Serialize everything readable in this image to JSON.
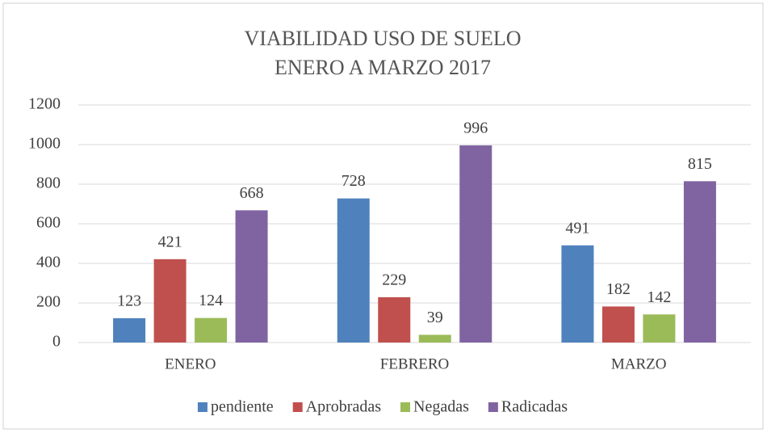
{
  "chart_data": {
    "type": "bar",
    "title": [
      "VIABILIDAD USO DE SUELO",
      "ENERO A MARZO 2017"
    ],
    "categories": [
      "ENERO",
      "FEBRERO",
      "MARZO"
    ],
    "series": [
      {
        "name": "pendiente",
        "color": "#4f81bd",
        "values": [
          123,
          728,
          491
        ]
      },
      {
        "name": "Aprobradas",
        "color": "#c0504d",
        "values": [
          421,
          229,
          182
        ]
      },
      {
        "name": "Negadas",
        "color": "#9bbb59",
        "values": [
          124,
          39,
          142
        ]
      },
      {
        "name": "Radicadas",
        "color": "#8064a2",
        "values": [
          668,
          996,
          815
        ]
      }
    ],
    "ylim": [
      0,
      1200
    ],
    "yticks": [
      0,
      200,
      400,
      600,
      800,
      1000,
      1200
    ],
    "grid": true,
    "legend": "bottom",
    "data_labels": true
  }
}
